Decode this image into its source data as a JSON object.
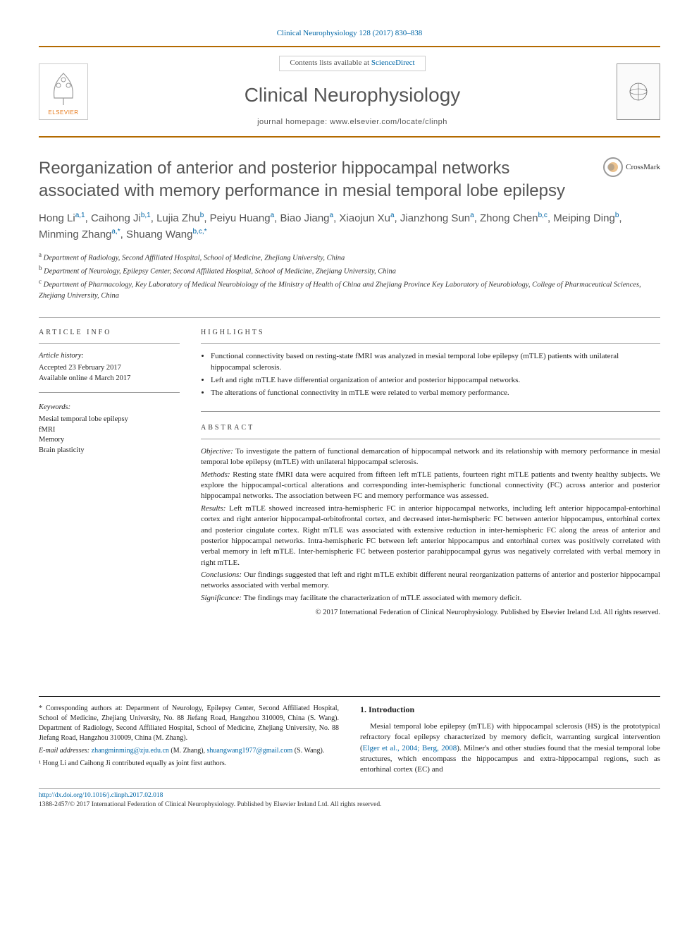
{
  "top_citation": "Clinical Neurophysiology 128 (2017) 830–838",
  "masthead": {
    "contents_prefix": "Contents lists available at ",
    "contents_link": "ScienceDirect",
    "journal": "Clinical Neurophysiology",
    "homepage_prefix": "journal homepage: ",
    "homepage": "www.elsevier.com/locate/clinph",
    "publisher": "ELSEVIER"
  },
  "crossmark": "CrossMark",
  "title": "Reorganization of anterior and posterior hippocampal networks associated with memory performance in mesial temporal lobe epilepsy",
  "authors_html": "Hong Li<sup>a,1</sup>, Caihong Ji<sup>b,1</sup>, Lujia Zhu<sup>b</sup>, Peiyu Huang<sup>a</sup>, Biao Jiang<sup>a</sup>, Xiaojun Xu<sup>a</sup>, Jianzhong Sun<sup>a</sup>, Zhong Chen<sup>b,c</sup>, Meiping Ding<sup>b</sup>, Minming Zhang<sup>a,*</sup>, Shuang Wang<sup>b,c,*</sup>",
  "affiliations": [
    {
      "key": "a",
      "text": "Department of Radiology, Second Affiliated Hospital, School of Medicine, Zhejiang University, China"
    },
    {
      "key": "b",
      "text": "Department of Neurology, Epilepsy Center, Second Affiliated Hospital, School of Medicine, Zhejiang University, China"
    },
    {
      "key": "c",
      "text": "Department of Pharmacology, Key Laboratory of Medical Neurobiology of the Ministry of Health of China and Zhejiang Province Key Laboratory of Neurobiology, College of Pharmaceutical Sciences, Zhejiang University, China"
    }
  ],
  "article_info": {
    "heading": "ARTICLE INFO",
    "history_label": "Article history:",
    "history": [
      "Accepted 23 February 2017",
      "Available online 4 March 2017"
    ],
    "keywords_label": "Keywords:",
    "keywords": [
      "Mesial temporal lobe epilepsy",
      "fMRI",
      "Memory",
      "Brain plasticity"
    ]
  },
  "highlights": {
    "heading": "HIGHLIGHTS",
    "items": [
      "Functional connectivity based on resting-state fMRI was analyzed in mesial temporal lobe epilepsy (mTLE) patients with unilateral hippocampal sclerosis.",
      "Left and right mTLE have differential organization of anterior and posterior hippocampal networks.",
      "The alterations of functional connectivity in mTLE were related to verbal memory performance."
    ]
  },
  "abstract": {
    "heading": "ABSTRACT",
    "sections": [
      {
        "label": "Objective:",
        "text": " To investigate the pattern of functional demarcation of hippocampal network and its relationship with memory performance in mesial temporal lobe epilepsy (mTLE) with unilateral hippocampal sclerosis."
      },
      {
        "label": "Methods:",
        "text": " Resting state fMRI data were acquired from fifteen left mTLE patients, fourteen right mTLE patients and twenty healthy subjects. We explore the hippocampal-cortical alterations and corresponding inter-hemispheric functional connectivity (FC) across anterior and posterior hippocampal networks. The association between FC and memory performance was assessed."
      },
      {
        "label": "Results:",
        "text": " Left mTLE showed increased intra-hemispheric FC in anterior hippocampal networks, including left anterior hippocampal-entorhinal cortex and right anterior hippocampal-orbitofrontal cortex, and decreased inter-hemispheric FC between anterior hippocampus, entorhinal cortex and posterior cingulate cortex. Right mTLE was associated with extensive reduction in inter-hemispheric FC along the areas of anterior and posterior hippocampal networks. Intra-hemispheric FC between left anterior hippocampus and entorhinal cortex was positively correlated with verbal memory in left mTLE. Inter-hemispheric FC between posterior parahippocampal gyrus was negatively correlated with verbal memory in right mTLE."
      },
      {
        "label": "Conclusions:",
        "text": " Our findings suggested that left and right mTLE exhibit different neural reorganization patterns of anterior and posterior hippocampal networks associated with verbal memory."
      },
      {
        "label": "Significance:",
        "text": " The findings may facilitate the characterization of mTLE associated with memory deficit."
      }
    ],
    "copyright": "© 2017 International Federation of Clinical Neurophysiology. Published by Elsevier Ireland Ltd. All rights reserved."
  },
  "footnotes": {
    "corr": "* Corresponding authors at: Department of Neurology, Epilepsy Center, Second Affiliated Hospital, School of Medicine, Zhejiang University, No. 88 Jiefang Road, Hangzhou 310009, China (S. Wang). Department of Radiology, Second Affiliated Hospital, School of Medicine, Zhejiang University, No. 88 Jiefang Road, Hangzhou 310009, China (M. Zhang).",
    "emails_label": "E-mail addresses: ",
    "email1": "zhangminming@zju.edu.cn",
    "email1_who": " (M. Zhang), ",
    "email2": "shuangwang1977@gmail.com",
    "email2_who": " (S. Wang).",
    "equal": "¹ Hong Li and Caihong Ji contributed equally as joint first authors."
  },
  "intro": {
    "heading": "1. Introduction",
    "body_pre": "Mesial temporal lobe epilepsy (mTLE) with hippocampal sclerosis (HS) is the prototypical refractory focal epilepsy characterized by memory deficit, warranting surgical intervention (",
    "body_link": "Elger et al., 2004; Berg, 2008",
    "body_post": "). Milner's and other studies found that the mesial temporal lobe structures, which encompass the hippocampus and extra-hippocampal regions, such as entorhinal cortex (EC) and"
  },
  "footer": {
    "doi": "http://dx.doi.org/10.1016/j.clinph.2017.02.018",
    "issn_line": "1388-2457/© 2017 International Federation of Clinical Neurophysiology. Published by Elsevier Ireland Ltd. All rights reserved."
  },
  "colors": {
    "link": "#0066a6",
    "rule": "#b36a00",
    "text_muted": "#555555",
    "publisher": "#e67817"
  }
}
